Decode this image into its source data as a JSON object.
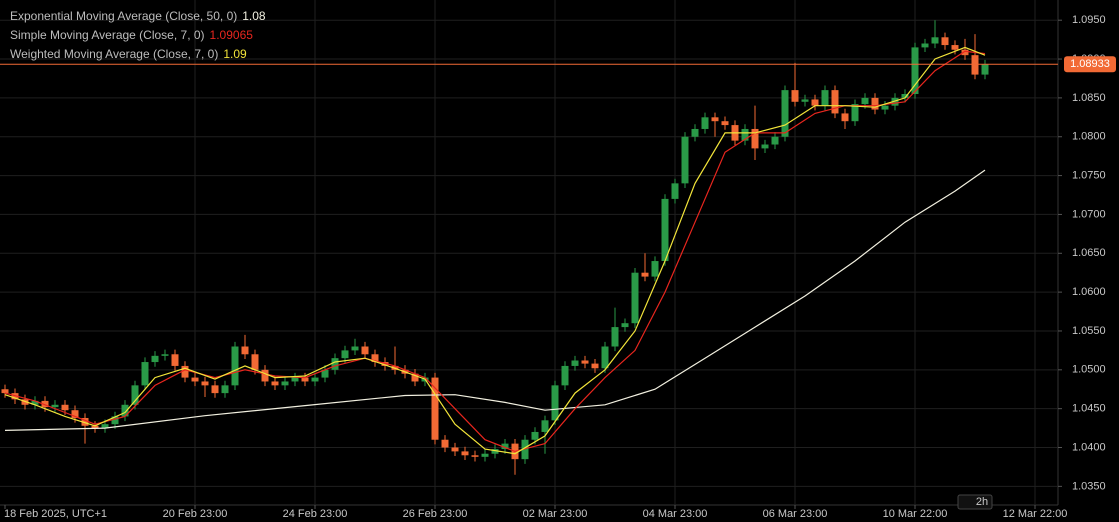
{
  "chart_data": {
    "type": "candlestick",
    "interval": "2h",
    "up_color": "#2a9a48",
    "down_color": "#f26a35",
    "grid": true,
    "ylim": [
      1.0326,
      1.0976
    ],
    "yticks": [
      {
        "value": 1.035,
        "label": "1.0350"
      },
      {
        "value": 1.04,
        "label": "1.0400"
      },
      {
        "value": 1.045,
        "label": "1.0450"
      },
      {
        "value": 1.05,
        "label": "1.0500"
      },
      {
        "value": 1.055,
        "label": "1.0550"
      },
      {
        "value": 1.06,
        "label": "1.0600"
      },
      {
        "value": 1.065,
        "label": "1.0650"
      },
      {
        "value": 1.07,
        "label": "1.0700"
      },
      {
        "value": 1.075,
        "label": "1.0750"
      },
      {
        "value": 1.08,
        "label": "1.0800"
      },
      {
        "value": 1.085,
        "label": "1.0850"
      },
      {
        "value": 1.09,
        "label": "1.0900"
      },
      {
        "value": 1.095,
        "label": "1.0950"
      }
    ],
    "xlim": [
      -0.5,
      105.3
    ],
    "xticks": [
      {
        "value": 0,
        "label": "18 Feb 2025, UTC+1"
      },
      {
        "value": 19,
        "label": "20 Feb 23:00"
      },
      {
        "value": 31,
        "label": "24 Feb 23:00"
      },
      {
        "value": 43,
        "label": "26 Feb 23:00"
      },
      {
        "value": 55,
        "label": "02 Mar 23:00"
      },
      {
        "value": 67,
        "label": "04 Mar 23:00"
      },
      {
        "value": 79,
        "label": "06 Mar 23:00"
      },
      {
        "value": 91,
        "label": "10 Mar 22:00"
      },
      {
        "value": 103,
        "label": "12 Mar 22:00"
      }
    ],
    "last_price": 1.08933,
    "price_line_color": "#f26a35",
    "open": [
      1.0475,
      1.047,
      1.0462,
      1.0455,
      1.046,
      1.0452,
      1.0455,
      1.0448,
      1.0438,
      1.0428,
      1.0425,
      1.043,
      1.044,
      1.0455,
      1.048,
      1.051,
      1.0518,
      1.052,
      1.0505,
      1.049,
      1.0485,
      1.048,
      1.047,
      1.048,
      1.053,
      1.052,
      1.05,
      1.0485,
      1.048,
      1.0485,
      1.049,
      1.0485,
      1.049,
      1.05,
      1.0515,
      1.0525,
      1.053,
      1.052,
      1.051,
      1.0505,
      1.05,
      1.0495,
      1.0485,
      1.049,
      1.041,
      1.04,
      1.0395,
      1.039,
      1.0388,
      1.0392,
      1.0398,
      1.0405,
      1.0385,
      1.041,
      1.042,
      1.0435,
      1.048,
      1.0505,
      1.0512,
      1.0508,
      1.0502,
      1.053,
      1.0555,
      1.056,
      1.0625,
      1.062,
      1.064,
      1.072,
      1.074,
      1.08,
      1.081,
      1.0825,
      1.082,
      1.0815,
      1.0795,
      1.081,
      1.0785,
      1.079,
      1.08,
      1.086,
      1.0845,
      1.0848,
      1.084,
      1.086,
      1.083,
      1.082,
      1.0842,
      1.085,
      1.0835,
      1.084,
      1.085,
      1.0855,
      1.0915,
      1.092,
      1.0928,
      1.0918,
      1.0912,
      1.0905,
      1.088
    ],
    "high": [
      1.0481,
      1.0476,
      1.0468,
      1.0466,
      1.0466,
      1.0461,
      1.0461,
      1.0454,
      1.0444,
      1.0434,
      1.0436,
      1.0446,
      1.0461,
      1.0486,
      1.0516,
      1.0524,
      1.0526,
      1.0526,
      1.0511,
      1.0496,
      1.0491,
      1.0486,
      1.0486,
      1.0536,
      1.0545,
      1.0526,
      1.0506,
      1.0491,
      1.0491,
      1.0496,
      1.0496,
      1.0496,
      1.0506,
      1.0521,
      1.0531,
      1.054,
      1.0536,
      1.0526,
      1.0516,
      1.053,
      1.0506,
      1.0501,
      1.0496,
      1.0496,
      1.0416,
      1.0406,
      1.0401,
      1.0396,
      1.0398,
      1.0404,
      1.0411,
      1.0411,
      1.0416,
      1.0426,
      1.0441,
      1.0486,
      1.0511,
      1.0518,
      1.0518,
      1.0514,
      1.0536,
      1.058,
      1.0566,
      1.0631,
      1.065,
      1.0646,
      1.0726,
      1.0746,
      1.0806,
      1.0816,
      1.0831,
      1.0831,
      1.0826,
      1.0821,
      1.0816,
      1.084,
      1.0796,
      1.0806,
      1.0866,
      1.0895,
      1.0854,
      1.0854,
      1.0866,
      1.0866,
      1.0836,
      1.0848,
      1.0856,
      1.0856,
      1.0846,
      1.0856,
      1.0861,
      1.0921,
      1.0926,
      1.095,
      1.0934,
      1.0924,
      1.0926,
      1.0932,
      1.0899
    ],
    "low": [
      1.0464,
      1.0456,
      1.0449,
      1.0449,
      1.0446,
      1.0446,
      1.0442,
      1.0432,
      1.0405,
      1.0419,
      1.0419,
      1.0424,
      1.0434,
      1.0449,
      1.0474,
      1.0504,
      1.0512,
      1.0499,
      1.0484,
      1.0479,
      1.0465,
      1.0464,
      1.0464,
      1.0474,
      1.0514,
      1.0494,
      1.0479,
      1.0474,
      1.0474,
      1.0479,
      1.0479,
      1.0479,
      1.0484,
      1.0494,
      1.0509,
      1.0519,
      1.0514,
      1.0504,
      1.0499,
      1.0494,
      1.0489,
      1.0479,
      1.0479,
      1.0404,
      1.0394,
      1.0389,
      1.0384,
      1.0382,
      1.0382,
      1.0386,
      1.0392,
      1.0365,
      1.0379,
      1.0404,
      1.0392,
      1.0429,
      1.0474,
      1.0499,
      1.0502,
      1.0496,
      1.0496,
      1.0524,
      1.0549,
      1.0554,
      1.0614,
      1.0614,
      1.0634,
      1.0714,
      1.0734,
      1.0794,
      1.0804,
      1.08,
      1.0809,
      1.0789,
      1.0789,
      1.077,
      1.0779,
      1.0784,
      1.0794,
      1.0839,
      1.0839,
      1.0834,
      1.0834,
      1.0824,
      1.081,
      1.0814,
      1.0836,
      1.0829,
      1.0829,
      1.0834,
      1.0844,
      1.0849,
      1.0909,
      1.0914,
      1.0912,
      1.0906,
      1.0899,
      1.0874,
      1.0874
    ],
    "close": [
      1.047,
      1.0462,
      1.0455,
      1.046,
      1.0452,
      1.0455,
      1.0448,
      1.0438,
      1.0428,
      1.0425,
      1.043,
      1.044,
      1.0455,
      1.048,
      1.051,
      1.0518,
      1.052,
      1.0505,
      1.049,
      1.0485,
      1.048,
      1.047,
      1.048,
      1.053,
      1.052,
      1.05,
      1.0485,
      1.048,
      1.0485,
      1.049,
      1.0485,
      1.049,
      1.05,
      1.0515,
      1.0525,
      1.053,
      1.052,
      1.051,
      1.0505,
      1.05,
      1.0495,
      1.0485,
      1.049,
      1.041,
      1.04,
      1.0395,
      1.039,
      1.0388,
      1.0392,
      1.0398,
      1.0405,
      1.0385,
      1.041,
      1.042,
      1.0435,
      1.048,
      1.0505,
      1.0512,
      1.0508,
      1.0502,
      1.053,
      1.0555,
      1.056,
      1.0625,
      1.062,
      1.064,
      1.072,
      1.074,
      1.08,
      1.081,
      1.0825,
      1.082,
      1.0815,
      1.0795,
      1.081,
      1.0785,
      1.079,
      1.08,
      1.086,
      1.0845,
      1.0848,
      1.084,
      1.086,
      1.083,
      1.082,
      1.0842,
      1.085,
      1.0835,
      1.084,
      1.085,
      1.0855,
      1.0915,
      1.092,
      1.0928,
      1.0918,
      1.0912,
      1.0905,
      1.088,
      1.0893
    ],
    "series": [
      {
        "name": "Exponential Moving Average (Close, 50, 0)",
        "current": 1.08,
        "color": "#f2f0e0",
        "x": [
          0,
          10,
          20,
          30,
          40,
          45,
          50,
          54,
          60,
          65,
          70,
          75,
          80,
          85,
          90,
          95,
          98
        ],
        "values": [
          1.0422,
          1.0425,
          1.0441,
          1.0454,
          1.0467,
          1.0468,
          1.0458,
          1.0448,
          1.0455,
          1.0475,
          1.0515,
          1.0555,
          1.0595,
          1.064,
          1.069,
          1.073,
          1.0757
        ]
      },
      {
        "name": "Simple Moving Average (Close, 7, 0)",
        "current": 1.09065,
        "color": "#e8261e",
        "x": [
          0,
          3,
          6,
          9,
          12,
          15,
          18,
          21,
          24,
          27,
          30,
          33,
          36,
          39,
          42,
          45,
          48,
          51,
          54,
          57,
          60,
          63,
          66,
          69,
          72,
          75,
          78,
          81,
          84,
          87,
          90,
          93,
          96,
          98
        ],
        "values": [
          1.047,
          1.046,
          1.0445,
          1.043,
          1.044,
          1.048,
          1.05,
          1.049,
          1.05,
          1.0492,
          1.049,
          1.0505,
          1.0515,
          1.0505,
          1.049,
          1.045,
          1.041,
          1.0395,
          1.0405,
          1.045,
          1.049,
          1.0525,
          1.06,
          1.069,
          1.078,
          1.0805,
          1.0805,
          1.083,
          1.084,
          1.084,
          1.0845,
          1.0885,
          1.091,
          1.0907
        ]
      },
      {
        "name": "Weighted Moving Average (Close, 7, 0)",
        "current": 1.09,
        "color": "#f2e43a",
        "x": [
          0,
          3,
          6,
          9,
          12,
          15,
          18,
          21,
          24,
          27,
          30,
          33,
          36,
          39,
          42,
          45,
          48,
          51,
          54,
          57,
          60,
          63,
          66,
          69,
          72,
          75,
          78,
          81,
          84,
          87,
          90,
          93,
          96,
          98
        ],
        "values": [
          1.0468,
          1.0455,
          1.044,
          1.0428,
          1.0445,
          1.049,
          1.0502,
          1.0488,
          1.0505,
          1.049,
          1.0492,
          1.051,
          1.0515,
          1.0502,
          1.0488,
          1.043,
          1.0398,
          1.0392,
          1.0415,
          1.047,
          1.05,
          1.055,
          1.064,
          1.074,
          1.0805,
          1.0805,
          1.0815,
          1.084,
          1.084,
          1.0838,
          1.085,
          1.09,
          1.0915,
          1.0905
        ]
      }
    ]
  }
}
